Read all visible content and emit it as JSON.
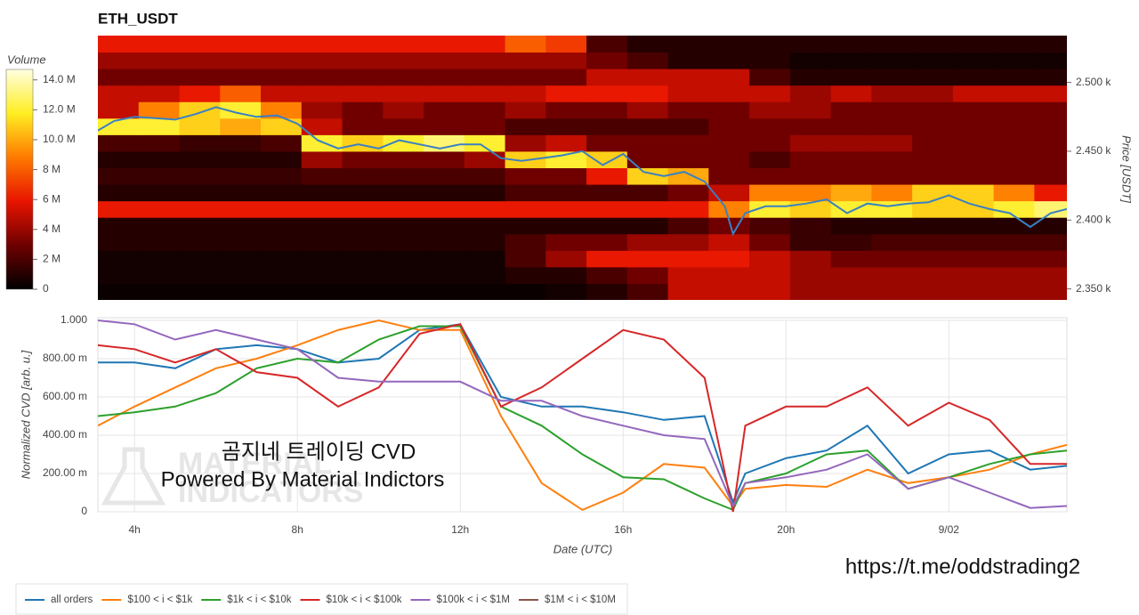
{
  "chart_data": [
    {
      "type": "heatmap",
      "title": "ETH_USDT",
      "colorbar_label": "Volume",
      "ylabel": "Price [USDT]",
      "xlim": [
        3.1,
        26.9
      ],
      "ylim": [
        2342,
        2534
      ],
      "yticks": [
        {
          "value": 2350,
          "label": "2.350 k"
        },
        {
          "value": 2400,
          "label": "2.400 k"
        },
        {
          "value": 2450,
          "label": "2.450 k"
        },
        {
          "value": 2500,
          "label": "2.500 k"
        }
      ],
      "zlim": [
        0,
        14.7
      ],
      "zticks": [
        0,
        {
          "value": 2,
          "label": "2 M"
        },
        {
          "value": 4,
          "label": "4 M"
        },
        {
          "value": 6,
          "label": "6 M"
        },
        {
          "value": 8,
          "label": "8 M"
        },
        {
          "value": 10,
          "label": "10.0 M"
        },
        {
          "value": 12,
          "label": "12.0 M"
        },
        {
          "value": 14,
          "label": "14.0 M"
        }
      ],
      "colorscale": [
        "#000000",
        "#6e0000",
        "#e81400",
        "#ff7a00",
        "#ffee22",
        "#ffffe0"
      ],
      "x": [
        3.6,
        4.6,
        5.6,
        6.6,
        7.6,
        8.6,
        9.6,
        10.6,
        11.6,
        12.6,
        13.6,
        14.6,
        15.6,
        16.6,
        17.6,
        18.6,
        19.6,
        20.6,
        21.6,
        22.6,
        23.6,
        24.6,
        25.6,
        26.6
      ],
      "price_levels": [
        2348,
        2360,
        2372,
        2384,
        2396,
        2408,
        2420,
        2432,
        2444,
        2456,
        2468,
        2480,
        2492,
        2504,
        2516,
        2528
      ],
      "z": [
        [
          0.3,
          0.3,
          0.3,
          0.3,
          0.3,
          0.3,
          0.3,
          0.3,
          0.3,
          0.3,
          0.3,
          0.5,
          1,
          2,
          5,
          5,
          5,
          4,
          4,
          4,
          4,
          4,
          4,
          4
        ],
        [
          0.5,
          0.5,
          0.5,
          0.5,
          0.5,
          0.5,
          0.5,
          0.5,
          0.5,
          0.5,
          1,
          1,
          2,
          3,
          5,
          5,
          5,
          4,
          4,
          4,
          4,
          4,
          4,
          4
        ],
        [
          0.5,
          0.5,
          0.5,
          0.5,
          0.5,
          0.5,
          0.5,
          0.5,
          0.5,
          0.5,
          2,
          4,
          6,
          6,
          6,
          6,
          5,
          4,
          3,
          3,
          3,
          3,
          3,
          3
        ],
        [
          1,
          1,
          1,
          1,
          1,
          1,
          1,
          1,
          1,
          1,
          2,
          3,
          3,
          4,
          4,
          5,
          3,
          1.5,
          1.5,
          2,
          2,
          2,
          2,
          2
        ],
        [
          1,
          1,
          1,
          1,
          1,
          1,
          1,
          1,
          1,
          1,
          1,
          1,
          1,
          1,
          2,
          3,
          2,
          1.5,
          1,
          1,
          1,
          1,
          1,
          1
        ],
        [
          6,
          6,
          6,
          6,
          6,
          6,
          6,
          6,
          6,
          6,
          6,
          6,
          6,
          6,
          6,
          9,
          12,
          11,
          12,
          12,
          11,
          11,
          12,
          13
        ],
        [
          1,
          1,
          1,
          1,
          1,
          1,
          1,
          1,
          1,
          1,
          2,
          2,
          2,
          2,
          3,
          5,
          9,
          9,
          10,
          9,
          11,
          11,
          9,
          6
        ],
        [
          1.5,
          1.5,
          1.5,
          1.5,
          1.5,
          2,
          2,
          2,
          2,
          2,
          3,
          3,
          6,
          11,
          10,
          3,
          3,
          3,
          3,
          3,
          3,
          3,
          3,
          3
        ],
        [
          1,
          1,
          1,
          1,
          1,
          4,
          3,
          3,
          3,
          4,
          11,
          12,
          11,
          3,
          3,
          3,
          2,
          3,
          3,
          3,
          3,
          3,
          3,
          3
        ],
        [
          2,
          2,
          1.5,
          1.5,
          2,
          12,
          11,
          12,
          13,
          12,
          4,
          5,
          3,
          3,
          3,
          3,
          3,
          4,
          4,
          4,
          3,
          3,
          3,
          3
        ],
        [
          12,
          12,
          11,
          10,
          11,
          5,
          3,
          3,
          3,
          3,
          2,
          2,
          2,
          2,
          2,
          3,
          3,
          3,
          3,
          3,
          3,
          3,
          3,
          3
        ],
        [
          5,
          9,
          11,
          12,
          9,
          4,
          3,
          4,
          3,
          3,
          4,
          3,
          3,
          4,
          3,
          3,
          4,
          4,
          3,
          3,
          3,
          3,
          3,
          3
        ],
        [
          5,
          5,
          6,
          8,
          5,
          5,
          5,
          5,
          5,
          5,
          5,
          6,
          6,
          6,
          5,
          5,
          5,
          4,
          5,
          4,
          4,
          5,
          5,
          5
        ],
        [
          3,
          3,
          3,
          3,
          3,
          3,
          3,
          3,
          3,
          3,
          3,
          3,
          5,
          5,
          5,
          5,
          2,
          1,
          1,
          1,
          1,
          1,
          1,
          1
        ],
        [
          4,
          4,
          4,
          4,
          4,
          4,
          4,
          4,
          4,
          4,
          4,
          4,
          3,
          2,
          1,
          1,
          1,
          0.5,
          0.5,
          0.5,
          0.5,
          0.5,
          0.5,
          0.5
        ],
        [
          6,
          6,
          6,
          6,
          6,
          6,
          6,
          6,
          6,
          6,
          8,
          7,
          2,
          1,
          1,
          1,
          1,
          1,
          1,
          1,
          1,
          1,
          1,
          1
        ]
      ],
      "line": {
        "color": "#3a80c2",
        "x": [
          3.1,
          3.5,
          4,
          4.5,
          5,
          5.5,
          6,
          6.5,
          7,
          7.5,
          8,
          8.5,
          9,
          9.5,
          10,
          10.5,
          11,
          11.5,
          12,
          12.5,
          13,
          13.5,
          14,
          14.5,
          15,
          15.5,
          16,
          16.5,
          17,
          17.5,
          18,
          18.5,
          18.7,
          19,
          19.5,
          20,
          20.5,
          21,
          21.5,
          22,
          22.5,
          23,
          23.5,
          24,
          24.5,
          25,
          25.5,
          26,
          26.5,
          26.9
        ],
        "values": [
          2465,
          2472,
          2475,
          2474,
          2473,
          2477,
          2482,
          2478,
          2475,
          2476,
          2470,
          2458,
          2452,
          2455,
          2452,
          2458,
          2455,
          2452,
          2455,
          2455,
          2445,
          2443,
          2445,
          2447,
          2450,
          2440,
          2448,
          2435,
          2432,
          2435,
          2428,
          2410,
          2390,
          2405,
          2410,
          2410,
          2412,
          2415,
          2405,
          2412,
          2410,
          2412,
          2413,
          2418,
          2412,
          2408,
          2405,
          2395,
          2405,
          2408
        ]
      }
    },
    {
      "type": "line",
      "xlabel": "Date (UTC)",
      "ylabel": "Normalized CVD [arb. u.]",
      "grid": true,
      "xlim": [
        3.1,
        26.9
      ],
      "ylim": [
        0,
        1
      ],
      "xticks": [
        {
          "value": 4,
          "label": "4h"
        },
        {
          "value": 8,
          "label": "8h"
        },
        {
          "value": 12,
          "label": "12h"
        },
        {
          "value": 16,
          "label": "16h"
        },
        {
          "value": 20,
          "label": "20h"
        },
        {
          "value": 24,
          "label": "9/02"
        }
      ],
      "yticks": [
        0,
        {
          "value": 0.2,
          "label": "200.00 m"
        },
        {
          "value": 0.4,
          "label": "400.00 m"
        },
        {
          "value": 0.6,
          "label": "600.00 m"
        },
        {
          "value": 0.8,
          "label": "800.00 m"
        },
        {
          "value": 1,
          "label": "1.000"
        }
      ],
      "x": [
        3.1,
        4,
        5,
        6,
        7,
        8,
        9,
        10,
        11,
        12,
        13,
        14,
        15,
        16,
        17,
        18,
        18.7,
        19,
        20,
        21,
        22,
        23,
        24,
        25,
        26,
        26.9
      ],
      "series": [
        {
          "name": "all orders",
          "color": "#1f77b4",
          "values": [
            0.78,
            0.78,
            0.75,
            0.85,
            0.87,
            0.85,
            0.78,
            0.8,
            0.95,
            0.98,
            0.6,
            0.55,
            0.55,
            0.52,
            0.48,
            0.5,
            0.05,
            0.2,
            0.28,
            0.32,
            0.45,
            0.2,
            0.3,
            0.32,
            0.22,
            0.24
          ]
        },
        {
          "name": "$100 < i < $1k",
          "color": "#ff7f0e",
          "values": [
            0.45,
            0.55,
            0.65,
            0.75,
            0.8,
            0.87,
            0.95,
            1.0,
            0.95,
            0.95,
            0.5,
            0.15,
            0.01,
            0.1,
            0.25,
            0.23,
            0.03,
            0.12,
            0.14,
            0.13,
            0.22,
            0.15,
            0.18,
            0.22,
            0.3,
            0.35
          ]
        },
        {
          "name": "$1k < i < $10k",
          "color": "#2ca02c",
          "values": [
            0.5,
            0.52,
            0.55,
            0.62,
            0.75,
            0.8,
            0.78,
            0.9,
            0.97,
            0.97,
            0.55,
            0.45,
            0.3,
            0.18,
            0.17,
            0.07,
            0.01,
            0.15,
            0.2,
            0.3,
            0.32,
            0.12,
            0.18,
            0.25,
            0.3,
            0.32
          ]
        },
        {
          "name": "$10k < i < $100k",
          "color": "#d62728",
          "values": [
            0.87,
            0.85,
            0.78,
            0.85,
            0.73,
            0.7,
            0.55,
            0.65,
            0.93,
            0.98,
            0.55,
            0.65,
            0.8,
            0.95,
            0.9,
            0.7,
            0,
            0.45,
            0.55,
            0.55,
            0.65,
            0.45,
            0.57,
            0.48,
            0.25,
            0.25
          ]
        },
        {
          "name": "$100k < i < $1M",
          "color": "#9467bd",
          "values": [
            1.0,
            0.98,
            0.9,
            0.95,
            0.9,
            0.85,
            0.7,
            0.68,
            0.68,
            0.68,
            0.58,
            0.58,
            0.5,
            0.45,
            0.4,
            0.38,
            0.03,
            0.15,
            0.18,
            0.22,
            0.3,
            0.12,
            0.18,
            0.1,
            0.02,
            0.03
          ]
        },
        {
          "name": "$1M < i < $10M",
          "color": "#8c564b",
          "values": [
            null,
            null,
            null,
            null,
            null,
            null,
            null,
            null,
            null,
            null,
            null,
            null,
            null,
            null,
            null,
            null,
            null,
            null,
            null,
            null,
            null,
            null,
            null,
            null,
            null,
            null
          ]
        }
      ]
    }
  ],
  "annotations": {
    "watermark_line1": "곰지네 트레이딩 CVD",
    "watermark_line2": "Powered By Material Indictors",
    "logo_line1": "MATERIAL",
    "logo_line2": "INDICATORS",
    "url": "https://t.me/oddstrading2"
  }
}
